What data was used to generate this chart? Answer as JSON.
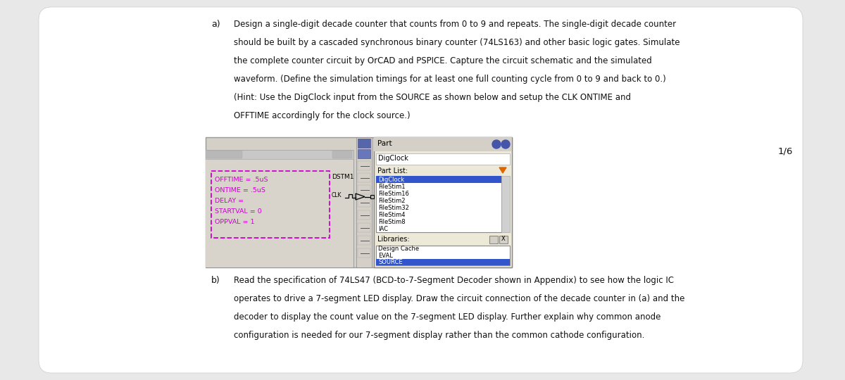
{
  "bg_color": "#e8e8e8",
  "page_bg": "#ffffff",
  "text_color": "#111111",
  "part_a_label": "a)",
  "part_b_label": "b)",
  "part_a_lines": [
    "Design a single-digit decade counter that counts from 0 to 9 and repeats. The single-digit decade counter",
    "should be built by a cascaded synchronous binary counter (74LS163) and other basic logic gates. Simulate",
    "the complete counter circuit by OrCAD and PSPICE. Capture the circuit schematic and the simulated",
    "waveform. (Define the simulation timings for at least one full counting cycle from 0 to 9 and back to 0.)",
    "(Hint: Use the DigClock input from the SOURCE as shown below and setup the CLK ONTIME and",
    "OFFTIME accordingly for the clock source.)"
  ],
  "part_b_lines": [
    "Read the specification of 74LS47 (BCD-to-7-Segment Decoder shown in Appendix) to see how the logic IC",
    "operates to drive a 7-segment LED display. Draw the circuit connection of the decade counter in (a) and the",
    "decoder to display the count value on the 7-segment LED display. Further explain why common anode",
    "configuration is needed for our 7-segment display rather than the common cathode configuration."
  ],
  "page_number": "1/6",
  "dstm_text_lines": [
    "OFFTIME = .5uS",
    "ONTIME = .5uS",
    "DELAY =",
    "STARTVAL = 0",
    "OPPVAL = 1"
  ],
  "dstm_label": "DSTM1",
  "clk_label": "CLK",
  "part_list_items": [
    "DigClock",
    "FileStim1",
    "FileStim16",
    "FileStim2",
    "FileStim32",
    "FileStim4",
    "FileStim8",
    "IAC"
  ],
  "library_items": [
    "Design Cache",
    "EVAL",
    "SOURCE"
  ],
  "magenta_color": "#cc00cc",
  "toolbar_bg": "#d4d0c8",
  "dialog_bg": "#ece9d8",
  "selected_item_bg": "#3355cc",
  "listbox_bg": "#ffffff",
  "part_field_label": "Part",
  "part_field_value": "DigClock",
  "part_list_label": "Part List:"
}
